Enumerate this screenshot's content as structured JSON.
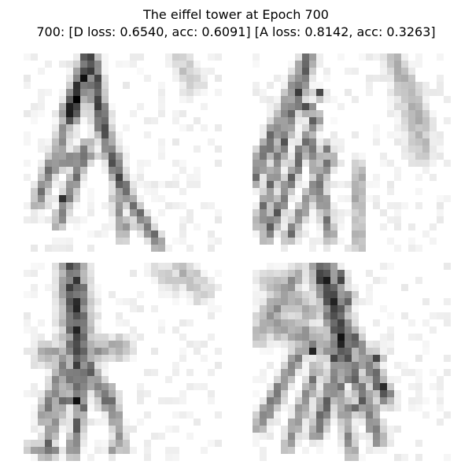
{
  "figure": {
    "title_line1": "The eiffel tower at Epoch 700",
    "title_line2": "700: [D loss: 0.6540, acc: 0.6091]  [A loss: 0.8142, acc: 0.3263]"
  },
  "colormap": "gray_r",
  "grid_size": 28
}
